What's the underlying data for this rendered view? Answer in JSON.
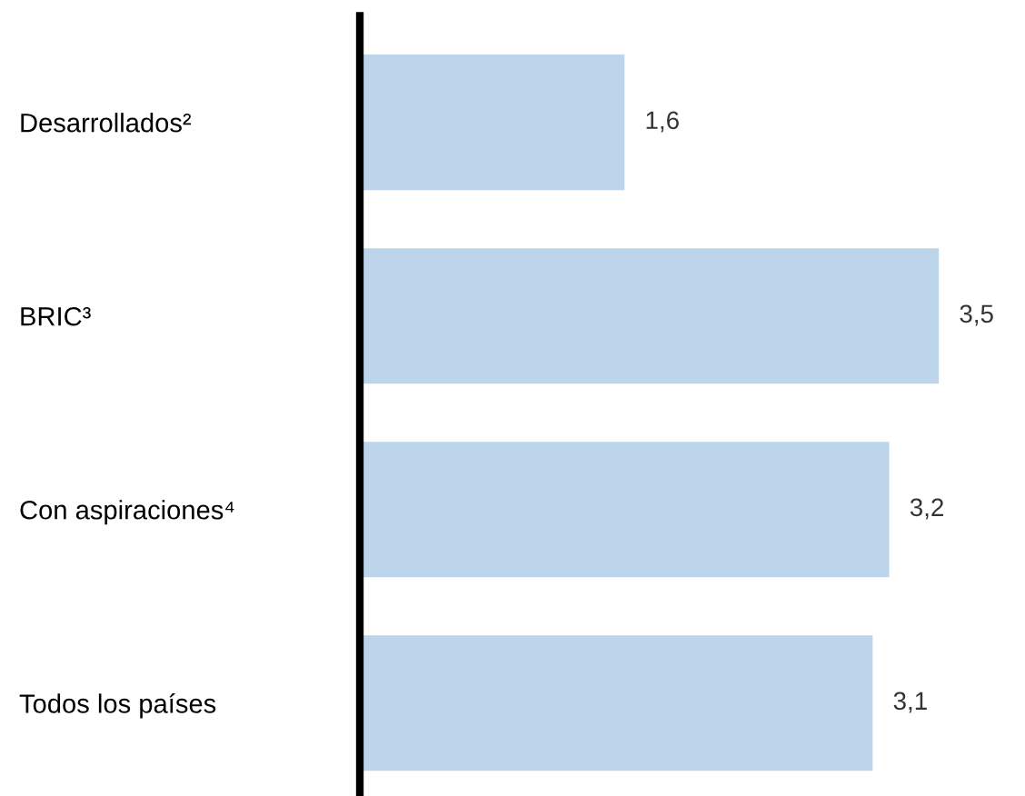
{
  "chart_data": {
    "type": "bar",
    "orientation": "horizontal",
    "categories": [
      "Desarrollados²",
      "BRIC³",
      "Con aspiraciones⁴",
      "Todos los países"
    ],
    "values": [
      1.6,
      3.5,
      3.2,
      3.1
    ],
    "color": "#bdd5ea",
    "value_labels": [
      "1,6",
      "3,5",
      "3,2",
      "3,1"
    ],
    "grid": false,
    "legend": false,
    "tick_labels": "y"
  }
}
